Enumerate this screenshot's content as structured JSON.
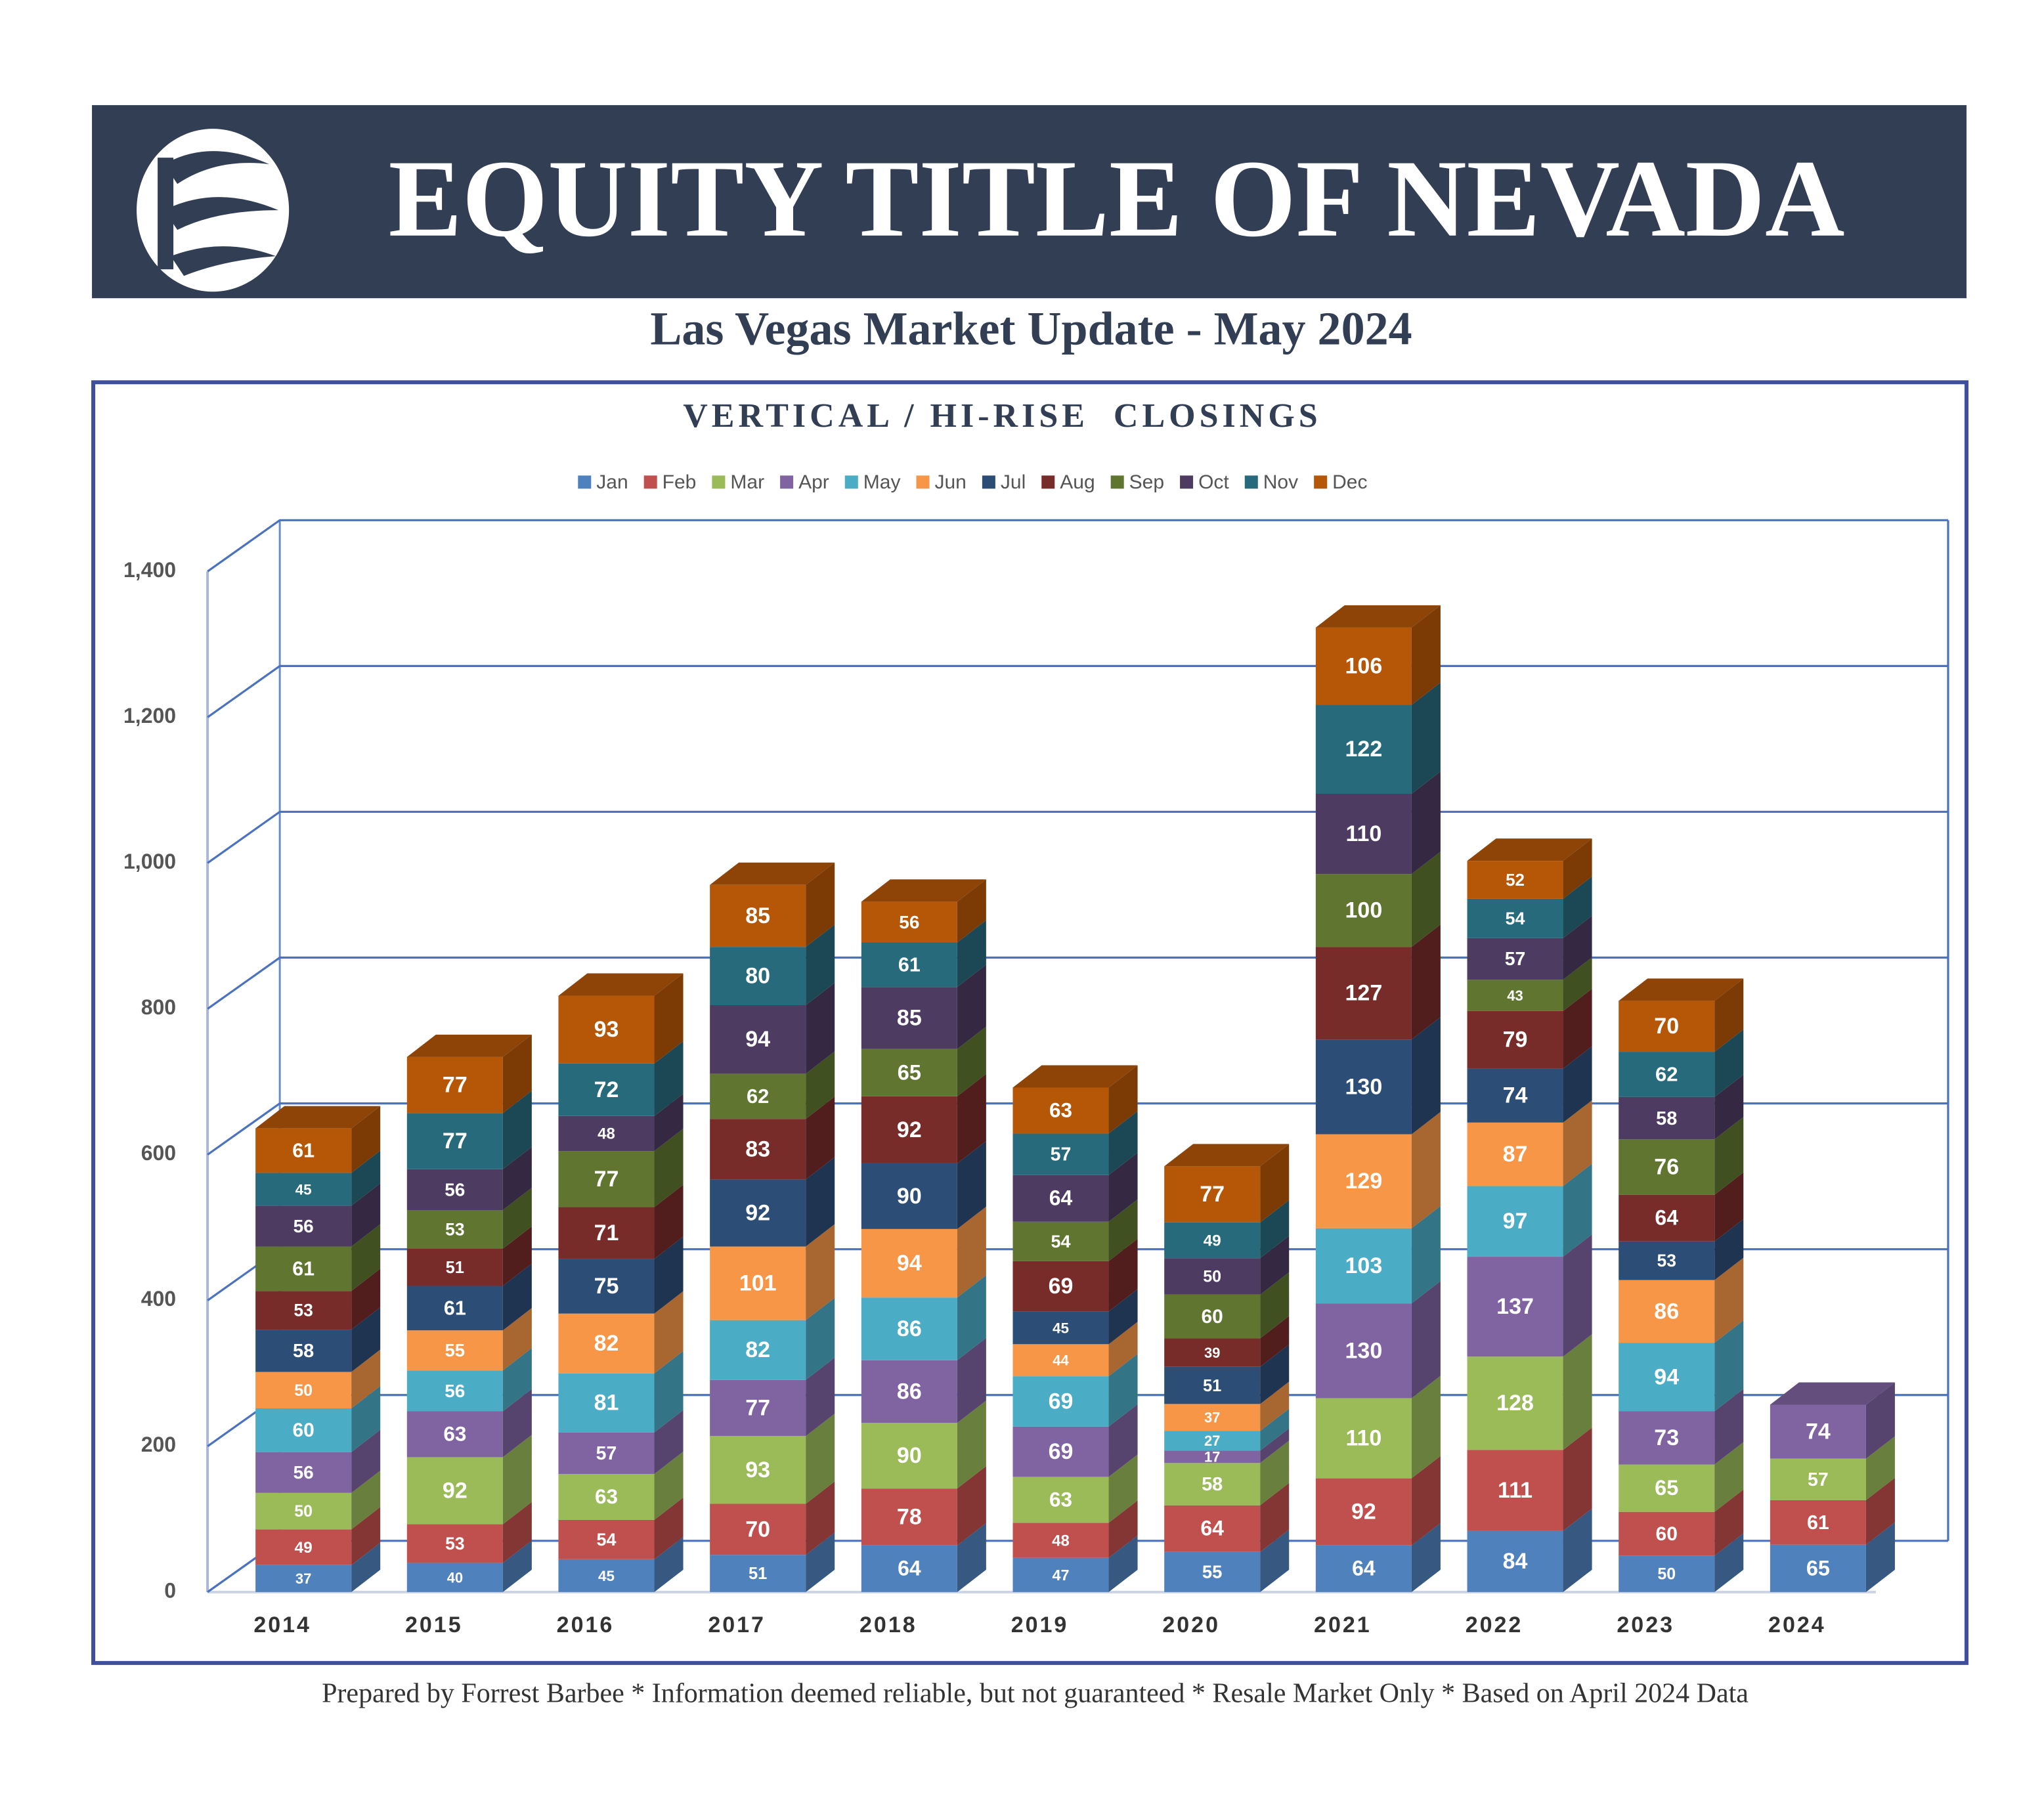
{
  "header": {
    "title": "EQUITY TITLE OF NEVADA",
    "subtitle": "Las Vegas Market Update - May 2024"
  },
  "footer": "Prepared by Forrest Barbee * Information deemed reliable, but not guaranteed * Resale Market Only * Based on April 2024 Data",
  "chart_data": {
    "type": "stacked-bar-3d",
    "title": "VERTICAL / HI-RISE  CLOSINGS",
    "categories": [
      "2014",
      "2015",
      "2016",
      "2017",
      "2018",
      "2019",
      "2020",
      "2021",
      "2022",
      "2023",
      "2024"
    ],
    "ylim": [
      0,
      1400
    ],
    "yticks": [
      0,
      200,
      400,
      600,
      800,
      {
        "value": 1000,
        "label": "1,000"
      },
      {
        "value": 1200,
        "label": "1,200"
      },
      {
        "value": 1400,
        "label": "1,400"
      }
    ],
    "grid": true,
    "legend": "top",
    "series": [
      {
        "name": "Jan",
        "color": "#4f81bd",
        "values": [
          37,
          40,
          45,
          51,
          64,
          47,
          55,
          64,
          84,
          50,
          65
        ]
      },
      {
        "name": "Feb",
        "color": "#c0504d",
        "values": [
          49,
          53,
          54,
          70,
          78,
          48,
          64,
          92,
          111,
          60,
          61
        ]
      },
      {
        "name": "Mar",
        "color": "#9bbb59",
        "values": [
          50,
          92,
          63,
          93,
          90,
          63,
          58,
          110,
          128,
          65,
          57
        ]
      },
      {
        "name": "Apr",
        "color": "#8064a2",
        "values": [
          56,
          63,
          57,
          77,
          86,
          69,
          17,
          130,
          137,
          73,
          74
        ]
      },
      {
        "name": "May",
        "color": "#4bacc6",
        "values": [
          60,
          56,
          81,
          82,
          86,
          69,
          27,
          103,
          97,
          94,
          null
        ]
      },
      {
        "name": "Jun",
        "color": "#f79646",
        "values": [
          50,
          55,
          82,
          101,
          94,
          44,
          37,
          129,
          87,
          86,
          null
        ]
      },
      {
        "name": "Jul",
        "color": "#2c4d75",
        "values": [
          58,
          61,
          75,
          92,
          90,
          45,
          51,
          130,
          74,
          53,
          null
        ]
      },
      {
        "name": "Aug",
        "color": "#772c2a",
        "values": [
          53,
          51,
          71,
          83,
          92,
          69,
          39,
          127,
          79,
          64,
          null
        ]
      },
      {
        "name": "Sep",
        "color": "#5f7530",
        "values": [
          61,
          53,
          77,
          62,
          65,
          54,
          60,
          100,
          43,
          76,
          null
        ]
      },
      {
        "name": "Oct",
        "color": "#4d3b62",
        "values": [
          56,
          56,
          48,
          94,
          85,
          64,
          50,
          110,
          57,
          58,
          null
        ]
      },
      {
        "name": "Nov",
        "color": "#276a7c",
        "values": [
          45,
          77,
          72,
          80,
          61,
          57,
          49,
          122,
          54,
          62,
          null
        ]
      },
      {
        "name": "Dec",
        "color": "#b65708",
        "values": [
          61,
          77,
          93,
          85,
          56,
          63,
          77,
          106,
          52,
          70,
          null
        ]
      }
    ]
  }
}
